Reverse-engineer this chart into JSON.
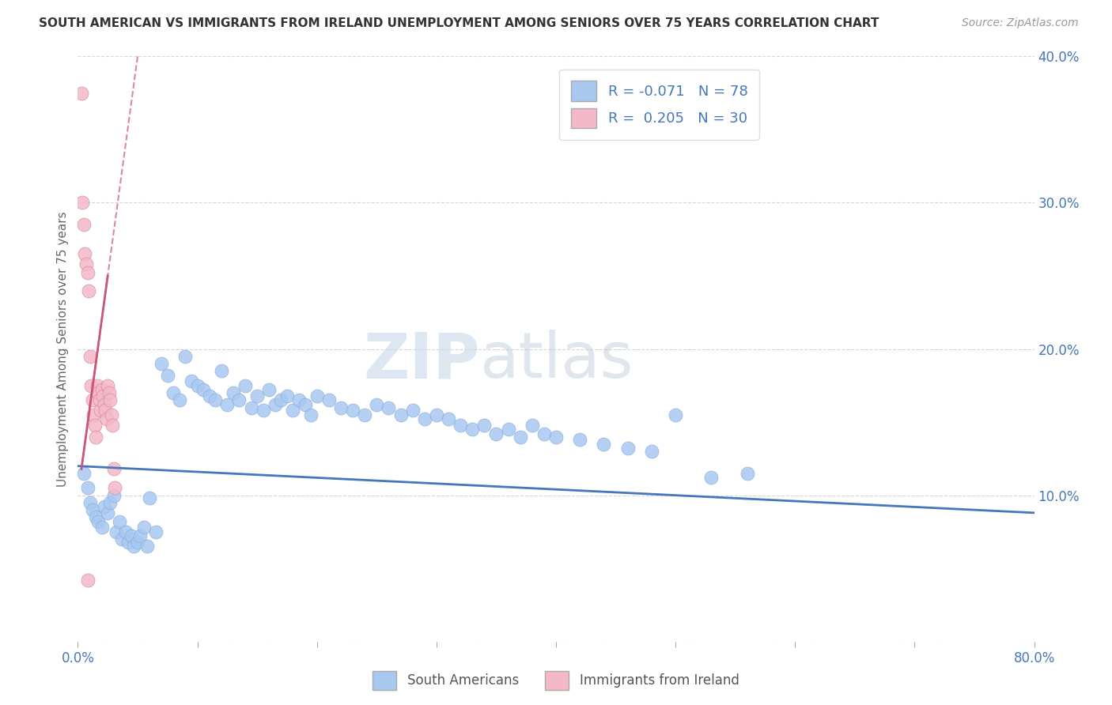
{
  "title": "SOUTH AMERICAN VS IMMIGRANTS FROM IRELAND UNEMPLOYMENT AMONG SENIORS OVER 75 YEARS CORRELATION CHART",
  "source": "Source: ZipAtlas.com",
  "ylabel": "Unemployment Among Seniors over 75 years",
  "xlim": [
    0.0,
    0.8
  ],
  "ylim": [
    0.0,
    0.4
  ],
  "blue_color": "#a8c8f0",
  "pink_color": "#f5b8c8",
  "blue_line_color": "#4477bb",
  "pink_line_color": "#cc5577",
  "legend_R_blue": "-0.071",
  "legend_N_blue": "78",
  "legend_R_pink": "0.205",
  "legend_N_pink": "30",
  "watermark_zip": "ZIP",
  "watermark_atlas": "atlas",
  "blue_trend": [
    -0.04,
    0.12
  ],
  "pink_trend": [
    6.0,
    0.1
  ],
  "south_americans_x": [
    0.005,
    0.008,
    0.01,
    0.012,
    0.015,
    0.017,
    0.02,
    0.022,
    0.025,
    0.027,
    0.03,
    0.032,
    0.035,
    0.037,
    0.04,
    0.042,
    0.045,
    0.047,
    0.05,
    0.052,
    0.055,
    0.058,
    0.06,
    0.065,
    0.07,
    0.075,
    0.08,
    0.085,
    0.09,
    0.095,
    0.1,
    0.105,
    0.11,
    0.115,
    0.12,
    0.125,
    0.13,
    0.135,
    0.14,
    0.145,
    0.15,
    0.155,
    0.16,
    0.165,
    0.17,
    0.175,
    0.18,
    0.185,
    0.19,
    0.195,
    0.2,
    0.21,
    0.22,
    0.23,
    0.24,
    0.25,
    0.26,
    0.27,
    0.28,
    0.29,
    0.3,
    0.31,
    0.32,
    0.33,
    0.34,
    0.35,
    0.36,
    0.37,
    0.38,
    0.39,
    0.4,
    0.42,
    0.44,
    0.46,
    0.48,
    0.5,
    0.53,
    0.56
  ],
  "south_americans_y": [
    0.115,
    0.105,
    0.095,
    0.09,
    0.085,
    0.082,
    0.078,
    0.092,
    0.088,
    0.095,
    0.1,
    0.075,
    0.082,
    0.07,
    0.075,
    0.068,
    0.072,
    0.065,
    0.068,
    0.072,
    0.078,
    0.065,
    0.098,
    0.075,
    0.19,
    0.182,
    0.17,
    0.165,
    0.195,
    0.178,
    0.175,
    0.172,
    0.168,
    0.165,
    0.185,
    0.162,
    0.17,
    0.165,
    0.175,
    0.16,
    0.168,
    0.158,
    0.172,
    0.162,
    0.165,
    0.168,
    0.158,
    0.165,
    0.162,
    0.155,
    0.168,
    0.165,
    0.16,
    0.158,
    0.155,
    0.162,
    0.16,
    0.155,
    0.158,
    0.152,
    0.155,
    0.152,
    0.148,
    0.145,
    0.148,
    0.142,
    0.145,
    0.14,
    0.148,
    0.142,
    0.14,
    0.138,
    0.135,
    0.132,
    0.13,
    0.155,
    0.112,
    0.115
  ],
  "ireland_x": [
    0.003,
    0.004,
    0.005,
    0.006,
    0.007,
    0.008,
    0.009,
    0.01,
    0.011,
    0.012,
    0.013,
    0.014,
    0.015,
    0.016,
    0.017,
    0.018,
    0.019,
    0.02,
    0.021,
    0.022,
    0.023,
    0.024,
    0.025,
    0.026,
    0.027,
    0.028,
    0.029,
    0.03,
    0.031,
    0.008
  ],
  "ireland_y": [
    0.375,
    0.3,
    0.285,
    0.265,
    0.258,
    0.252,
    0.24,
    0.195,
    0.175,
    0.165,
    0.155,
    0.148,
    0.14,
    0.175,
    0.17,
    0.165,
    0.158,
    0.172,
    0.168,
    0.162,
    0.158,
    0.152,
    0.175,
    0.17,
    0.165,
    0.155,
    0.148,
    0.118,
    0.105,
    0.042
  ]
}
